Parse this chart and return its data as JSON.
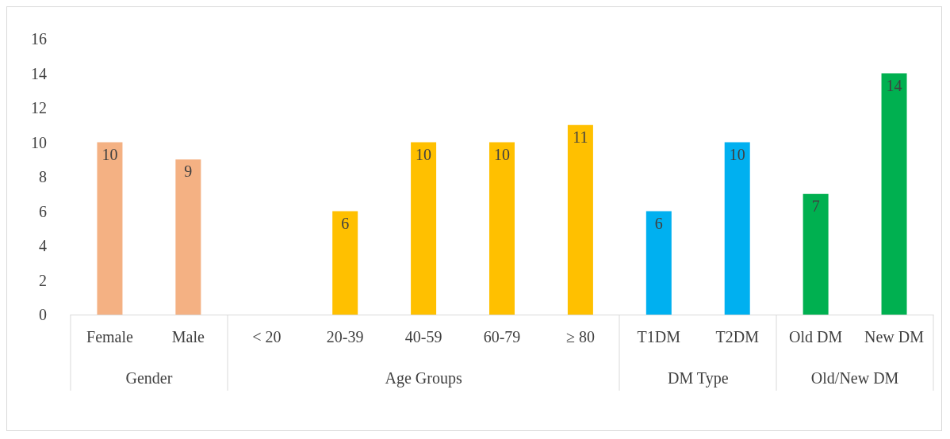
{
  "chart_data": {
    "type": "bar",
    "categories": [
      "Female",
      "Male",
      "< 20",
      "20-39",
      "40-59",
      "60-79",
      "≥ 80",
      "T1DM",
      "T2DM",
      "Old DM",
      "New DM"
    ],
    "values": [
      10,
      9,
      null,
      6,
      10,
      10,
      11,
      6,
      10,
      7,
      14
    ],
    "colors": [
      "#f4b183",
      "#f4b183",
      "#ffc000",
      "#ffc000",
      "#ffc000",
      "#ffc000",
      "#ffc000",
      "#00b0f0",
      "#00b0f0",
      "#00b050",
      "#00b050"
    ],
    "annotations": [
      "Gender",
      "Age Groups",
      "DM Type",
      "Old/New DM"
    ],
    "ylim": [
      0,
      16
    ],
    "yticks": [
      0,
      2,
      4,
      6,
      8,
      10,
      12,
      14,
      16
    ],
    "grid": false,
    "data_labels": true
  }
}
